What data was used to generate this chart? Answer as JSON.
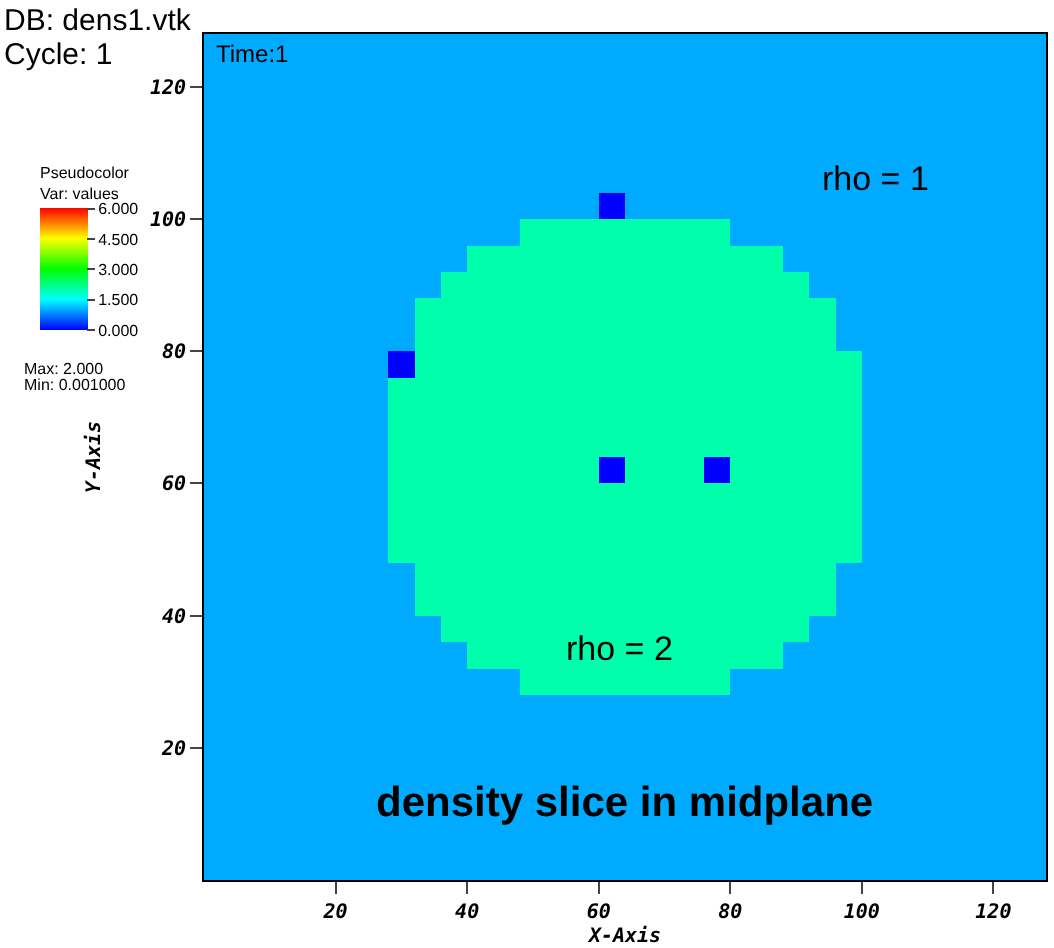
{
  "chart_data": {
    "type": "heatmap",
    "title": "DB: dens1.vtk",
    "subtitle": "Cycle: 1",
    "xlabel": "X-Axis",
    "ylabel": "Y-Axis",
    "clabel": "Pseudocolor\nVar: values",
    "xlim": [
      0,
      128
    ],
    "ylim": [
      0,
      128
    ],
    "xticks": [
      20,
      40,
      60,
      80,
      100,
      120
    ],
    "yticks": [
      20,
      40,
      60,
      80,
      100,
      120
    ],
    "clim": [
      0,
      6
    ],
    "cticks": [
      {
        "value": 0,
        "label": "0.000"
      },
      {
        "value": 1.5,
        "label": "1.500"
      },
      {
        "value": 3,
        "label": "3.000"
      },
      {
        "value": 4.5,
        "label": "4.500"
      },
      {
        "value": 6,
        "label": "6.000"
      }
    ],
    "annotations": [
      "Time:1",
      "Max: 2.000",
      "Min: 0.001000",
      "rho = 1",
      "rho = 2",
      "density slice in midplane"
    ],
    "cells": [
      [
        1,
        1,
        1,
        1,
        1,
        1,
        1,
        1,
        1,
        1,
        1,
        1,
        1,
        1,
        1,
        1,
        1,
        1,
        1,
        1,
        1,
        1,
        1,
        1,
        1,
        1,
        1,
        1,
        1,
        1,
        1,
        1
      ],
      [
        1,
        1,
        1,
        1,
        1,
        1,
        1,
        1,
        1,
        1,
        1,
        1,
        1,
        1,
        1,
        1,
        1,
        1,
        1,
        1,
        1,
        1,
        1,
        1,
        1,
        1,
        1,
        1,
        1,
        1,
        1,
        1
      ],
      [
        1,
        1,
        1,
        1,
        1,
        1,
        1,
        1,
        1,
        1,
        1,
        1,
        1,
        1,
        1,
        1,
        1,
        1,
        1,
        1,
        1,
        1,
        1,
        1,
        1,
        1,
        1,
        1,
        1,
        1,
        1,
        1
      ],
      [
        1,
        1,
        1,
        1,
        1,
        1,
        1,
        1,
        1,
        1,
        1,
        1,
        1,
        1,
        1,
        1,
        1,
        1,
        1,
        1,
        1,
        1,
        1,
        1,
        1,
        1,
        1,
        1,
        1,
        1,
        1,
        1
      ],
      [
        1,
        1,
        1,
        1,
        1,
        1,
        1,
        1,
        1,
        1,
        1,
        1,
        1,
        1,
        1,
        1,
        1,
        1,
        1,
        1,
        1,
        1,
        1,
        1,
        1,
        1,
        1,
        1,
        1,
        1,
        1,
        1
      ],
      [
        1,
        1,
        1,
        1,
        1,
        1,
        1,
        1,
        1,
        1,
        1,
        1,
        1,
        1,
        1,
        1,
        1,
        1,
        1,
        1,
        1,
        1,
        1,
        1,
        1,
        1,
        1,
        1,
        1,
        1,
        1,
        1
      ],
      [
        1,
        1,
        1,
        1,
        1,
        1,
        1,
        1,
        1,
        1,
        1,
        1,
        1,
        1,
        1,
        0,
        1,
        1,
        1,
        1,
        1,
        1,
        1,
        1,
        1,
        1,
        1,
        1,
        1,
        1,
        1,
        1
      ],
      [
        1,
        1,
        1,
        1,
        1,
        1,
        1,
        1,
        1,
        1,
        1,
        1,
        2,
        2,
        2,
        2,
        2,
        2,
        2,
        2,
        1,
        1,
        1,
        1,
        1,
        1,
        1,
        1,
        1,
        1,
        1,
        1
      ],
      [
        1,
        1,
        1,
        1,
        1,
        1,
        1,
        1,
        1,
        1,
        2,
        2,
        2,
        2,
        2,
        2,
        2,
        2,
        2,
        2,
        2,
        2,
        1,
        1,
        1,
        1,
        1,
        1,
        1,
        1,
        1,
        1
      ],
      [
        1,
        1,
        1,
        1,
        1,
        1,
        1,
        1,
        1,
        2,
        2,
        2,
        2,
        2,
        2,
        2,
        2,
        2,
        2,
        2,
        2,
        2,
        2,
        1,
        1,
        1,
        1,
        1,
        1,
        1,
        1,
        1
      ],
      [
        1,
        1,
        1,
        1,
        1,
        1,
        1,
        1,
        2,
        2,
        2,
        2,
        2,
        2,
        2,
        2,
        2,
        2,
        2,
        2,
        2,
        2,
        2,
        2,
        1,
        1,
        1,
        1,
        1,
        1,
        1,
        1
      ],
      [
        1,
        1,
        1,
        1,
        1,
        1,
        1,
        1,
        2,
        2,
        2,
        2,
        2,
        2,
        2,
        2,
        2,
        2,
        2,
        2,
        2,
        2,
        2,
        2,
        1,
        1,
        1,
        1,
        1,
        1,
        1,
        1
      ],
      [
        1,
        1,
        1,
        1,
        1,
        1,
        1,
        0,
        2,
        2,
        2,
        2,
        2,
        2,
        2,
        2,
        2,
        2,
        2,
        2,
        2,
        2,
        2,
        2,
        2,
        1,
        1,
        1,
        1,
        1,
        1,
        1
      ],
      [
        1,
        1,
        1,
        1,
        1,
        1,
        1,
        2,
        2,
        2,
        2,
        2,
        2,
        2,
        2,
        2,
        2,
        2,
        2,
        2,
        2,
        2,
        2,
        2,
        2,
        1,
        1,
        1,
        1,
        1,
        1,
        1
      ],
      [
        1,
        1,
        1,
        1,
        1,
        1,
        1,
        2,
        2,
        2,
        2,
        2,
        2,
        2,
        2,
        2,
        2,
        2,
        2,
        2,
        2,
        2,
        2,
        2,
        2,
        1,
        1,
        1,
        1,
        1,
        1,
        1
      ],
      [
        1,
        1,
        1,
        1,
        1,
        1,
        1,
        2,
        2,
        2,
        2,
        2,
        2,
        2,
        2,
        2,
        2,
        2,
        2,
        2,
        2,
        2,
        2,
        2,
        2,
        1,
        1,
        1,
        1,
        1,
        1,
        1
      ],
      [
        1,
        1,
        1,
        1,
        1,
        1,
        1,
        2,
        2,
        2,
        2,
        2,
        2,
        2,
        2,
        0,
        2,
        2,
        2,
        0,
        2,
        2,
        2,
        2,
        2,
        1,
        1,
        1,
        1,
        1,
        1,
        1
      ],
      [
        1,
        1,
        1,
        1,
        1,
        1,
        1,
        2,
        2,
        2,
        2,
        2,
        2,
        2,
        2,
        2,
        2,
        2,
        2,
        2,
        2,
        2,
        2,
        2,
        2,
        1,
        1,
        1,
        1,
        1,
        1,
        1
      ],
      [
        1,
        1,
        1,
        1,
        1,
        1,
        1,
        2,
        2,
        2,
        2,
        2,
        2,
        2,
        2,
        2,
        2,
        2,
        2,
        2,
        2,
        2,
        2,
        2,
        2,
        1,
        1,
        1,
        1,
        1,
        1,
        1
      ],
      [
        1,
        1,
        1,
        1,
        1,
        1,
        1,
        2,
        2,
        2,
        2,
        2,
        2,
        2,
        2,
        2,
        2,
        2,
        2,
        2,
        2,
        2,
        2,
        2,
        2,
        1,
        1,
        1,
        1,
        1,
        1,
        1
      ],
      [
        1,
        1,
        1,
        1,
        1,
        1,
        1,
        1,
        2,
        2,
        2,
        2,
        2,
        2,
        2,
        2,
        2,
        2,
        2,
        2,
        2,
        2,
        2,
        2,
        1,
        1,
        1,
        1,
        1,
        1,
        1,
        1
      ],
      [
        1,
        1,
        1,
        1,
        1,
        1,
        1,
        1,
        2,
        2,
        2,
        2,
        2,
        2,
        2,
        2,
        2,
        2,
        2,
        2,
        2,
        2,
        2,
        2,
        1,
        1,
        1,
        1,
        1,
        1,
        1,
        1
      ],
      [
        1,
        1,
        1,
        1,
        1,
        1,
        1,
        1,
        1,
        2,
        2,
        2,
        2,
        2,
        2,
        2,
        2,
        2,
        2,
        2,
        2,
        2,
        2,
        1,
        1,
        1,
        1,
        1,
        1,
        1,
        1,
        1
      ],
      [
        1,
        1,
        1,
        1,
        1,
        1,
        1,
        1,
        1,
        1,
        2,
        2,
        2,
        2,
        2,
        2,
        2,
        2,
        2,
        2,
        2,
        2,
        1,
        1,
        1,
        1,
        1,
        1,
        1,
        1,
        1,
        1
      ],
      [
        1,
        1,
        1,
        1,
        1,
        1,
        1,
        1,
        1,
        1,
        1,
        1,
        2,
        2,
        2,
        2,
        2,
        2,
        2,
        2,
        1,
        1,
        1,
        1,
        1,
        1,
        1,
        1,
        1,
        1,
        1,
        1
      ],
      [
        1,
        1,
        1,
        1,
        1,
        1,
        1,
        1,
        1,
        1,
        1,
        1,
        1,
        1,
        1,
        1,
        1,
        1,
        1,
        1,
        1,
        1,
        1,
        1,
        1,
        1,
        1,
        1,
        1,
        1,
        1,
        1
      ],
      [
        1,
        1,
        1,
        1,
        1,
        1,
        1,
        1,
        1,
        1,
        1,
        1,
        1,
        1,
        1,
        1,
        1,
        1,
        1,
        1,
        1,
        1,
        1,
        1,
        1,
        1,
        1,
        1,
        1,
        1,
        1,
        1
      ],
      [
        1,
        1,
        1,
        1,
        1,
        1,
        1,
        1,
        1,
        1,
        1,
        1,
        1,
        1,
        1,
        1,
        1,
        1,
        1,
        1,
        1,
        1,
        1,
        1,
        1,
        1,
        1,
        1,
        1,
        1,
        1,
        1
      ],
      [
        1,
        1,
        1,
        1,
        1,
        1,
        1,
        1,
        1,
        1,
        1,
        1,
        1,
        1,
        1,
        1,
        1,
        1,
        1,
        1,
        1,
        1,
        1,
        1,
        1,
        1,
        1,
        1,
        1,
        1,
        1,
        1
      ],
      [
        1,
        1,
        1,
        1,
        1,
        1,
        1,
        1,
        1,
        1,
        1,
        1,
        1,
        1,
        1,
        1,
        1,
        1,
        1,
        1,
        1,
        1,
        1,
        1,
        1,
        1,
        1,
        1,
        1,
        1,
        1,
        1
      ],
      [
        1,
        1,
        1,
        1,
        1,
        1,
        1,
        1,
        1,
        1,
        1,
        1,
        1,
        1,
        1,
        1,
        1,
        1,
        1,
        1,
        1,
        1,
        1,
        1,
        1,
        1,
        1,
        1,
        1,
        1,
        1,
        1
      ],
      [
        1,
        1,
        1,
        1,
        1,
        1,
        1,
        1,
        1,
        1,
        1,
        1,
        1,
        1,
        1,
        1,
        1,
        1,
        1,
        1,
        1,
        1,
        1,
        1,
        1,
        1,
        1,
        1,
        1,
        1,
        1,
        1
      ]
    ]
  }
}
